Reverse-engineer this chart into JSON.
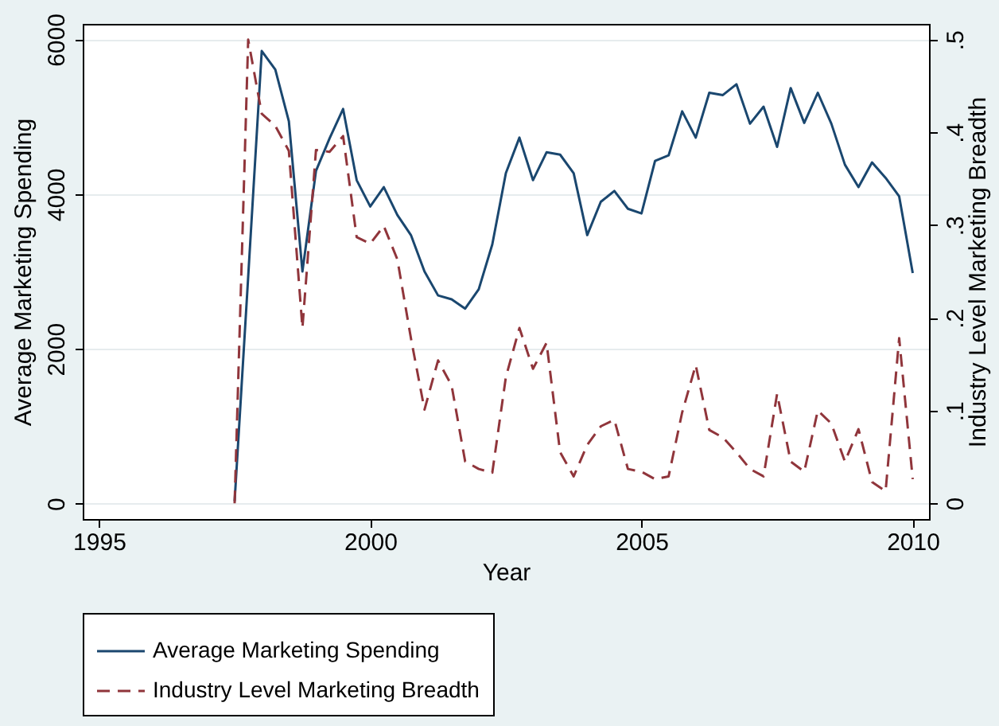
{
  "chart_data": {
    "type": "line",
    "xlabel": "Year",
    "ylabel": "Average Marketing Spending",
    "y2label": "Industry Level Marketing Breadth",
    "x": [
      1997.5,
      1997.75,
      1998.0,
      1998.25,
      1998.5,
      1998.75,
      1999.0,
      1999.25,
      1999.5,
      1999.75,
      2000.0,
      2000.25,
      2000.5,
      2000.75,
      2001.0,
      2001.25,
      2001.5,
      2001.75,
      2002.0,
      2002.25,
      2002.5,
      2002.75,
      2003.0,
      2003.25,
      2003.5,
      2003.75,
      2004.0,
      2004.25,
      2004.5,
      2004.75,
      2005.0,
      2005.25,
      2005.5,
      2005.75,
      2006.0,
      2006.25,
      2006.5,
      2006.75,
      2007.0,
      2007.25,
      2007.5,
      2007.75,
      2008.0,
      2008.25,
      2008.5,
      2008.75,
      2009.0,
      2009.25,
      2009.5,
      2009.75,
      2010.0
    ],
    "series": [
      {
        "name": "Average Marketing Spending",
        "color": "#1a476f",
        "line_style": "solid",
        "values": [
          30,
          2930,
          5850,
          5610,
          4940,
          3000,
          4300,
          4720,
          5100,
          4180,
          3840,
          4090,
          3730,
          3470,
          3000,
          2690,
          2640,
          2520,
          2770,
          3350,
          4270,
          4730,
          4180,
          4540,
          4510,
          4270,
          3470,
          3900,
          4040,
          3810,
          3750,
          4430,
          4500,
          5070,
          4730,
          5310,
          5280,
          5420,
          4910,
          5130,
          4610,
          5370,
          4920,
          5310,
          4910,
          4380,
          4090,
          4410,
          4210,
          3970,
          2980
        ]
      },
      {
        "name": "Industry Level Marketing Breadth",
        "color": "#90353b",
        "line_style": "dashed",
        "axis": "y2",
        "values": [
          0,
          0.5,
          0.42,
          0.407,
          0.38,
          0.189,
          0.381,
          0.379,
          0.396,
          0.287,
          0.28,
          0.299,
          0.263,
          0.178,
          0.101,
          0.154,
          0.127,
          0.045,
          0.037,
          0.033,
          0.136,
          0.189,
          0.145,
          0.173,
          0.055,
          0.029,
          0.063,
          0.083,
          0.09,
          0.037,
          0.034,
          0.026,
          0.029,
          0.098,
          0.149,
          0.079,
          0.071,
          0.055,
          0.037,
          0.029,
          0.118,
          0.045,
          0.034,
          0.1,
          0.086,
          0.045,
          0.08,
          0.023,
          0.013,
          0.178,
          0.026
        ]
      }
    ],
    "xlim": [
      1994.7,
      2010.3
    ],
    "xticks": [
      1995,
      2000,
      2005,
      2010
    ],
    "ylim": [
      -200,
      6200
    ],
    "yticks": [
      0,
      2000,
      4000,
      6000
    ],
    "y2lim": [
      -0.017,
      0.517
    ],
    "y2ticks": [
      0,
      {
        "value": 0.1,
        "label": ".1"
      },
      {
        "value": 0.2,
        "label": ".2"
      },
      {
        "value": 0.3,
        "label": ".3"
      },
      {
        "value": 0.4,
        "label": ".4"
      },
      {
        "value": 0.5,
        "label": ".5"
      }
    ],
    "grid": "y",
    "legend": "bottom"
  }
}
